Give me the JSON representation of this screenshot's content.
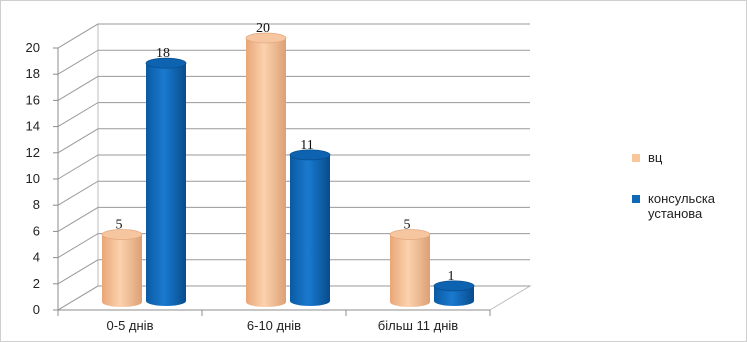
{
  "chart_data": {
    "type": "bar",
    "categories": [
      "0-5 днів",
      "6-10 днів",
      "більш 11 днів"
    ],
    "series": [
      {
        "name": "вц",
        "values": [
          5,
          20,
          5
        ],
        "color": "#f8c69a"
      },
      {
        "name": "консульска установа",
        "values": [
          18,
          11,
          1
        ],
        "color": "#0f67b8"
      }
    ],
    "ylim": [
      0,
      20
    ],
    "yticks": [
      0,
      2,
      4,
      6,
      8,
      10,
      12,
      14,
      16,
      18,
      20
    ],
    "grid": true,
    "legend_position": "right",
    "style": "3d-cylinder",
    "title": "",
    "xlabel": "",
    "ylabel": ""
  }
}
